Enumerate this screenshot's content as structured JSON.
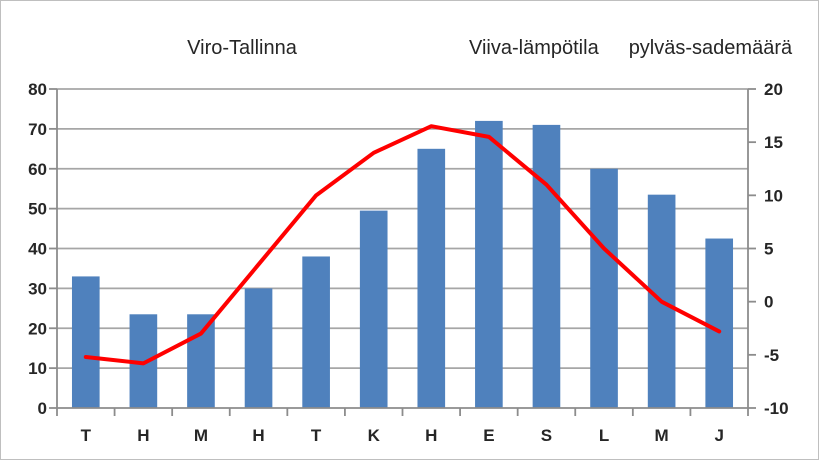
{
  "chart_data": {
    "type": "combo-bar-line",
    "title": "Viro-Tallinna",
    "legend": {
      "line": "Viiva-lämpötila",
      "bar": "pylväs-sademäärä"
    },
    "legend_position": "top-right",
    "grid": true,
    "categories": [
      "T",
      "H",
      "M",
      "H",
      "T",
      "K",
      "H",
      "E",
      "S",
      "L",
      "M",
      "J"
    ],
    "series": [
      {
        "name": "sademäärä",
        "type": "bar",
        "axis": "left",
        "color": "#4F81BD",
        "values": [
          33,
          23.5,
          23.5,
          30,
          38,
          49.5,
          65,
          72,
          71,
          60,
          53.5,
          42.5
        ]
      },
      {
        "name": "lämpötila",
        "type": "line",
        "axis": "right",
        "color": "#FF0000",
        "values": [
          -5.2,
          -5.8,
          -3,
          3.5,
          10,
          14,
          16.5,
          15.5,
          11,
          5,
          0,
          -2.8
        ]
      }
    ],
    "left_axis": {
      "min": 0,
      "max": 80,
      "step": 10,
      "ticks": [
        0,
        10,
        20,
        30,
        40,
        50,
        60,
        70,
        80
      ]
    },
    "right_axis": {
      "min": -10,
      "max": 20,
      "step": 5,
      "ticks": [
        -10,
        -5,
        0,
        5,
        10,
        15,
        20
      ]
    },
    "colors": {
      "grid": "#A6A6A6",
      "axis": "#8C8C8C",
      "text": "#262626",
      "background": "#FFFFFF"
    }
  }
}
